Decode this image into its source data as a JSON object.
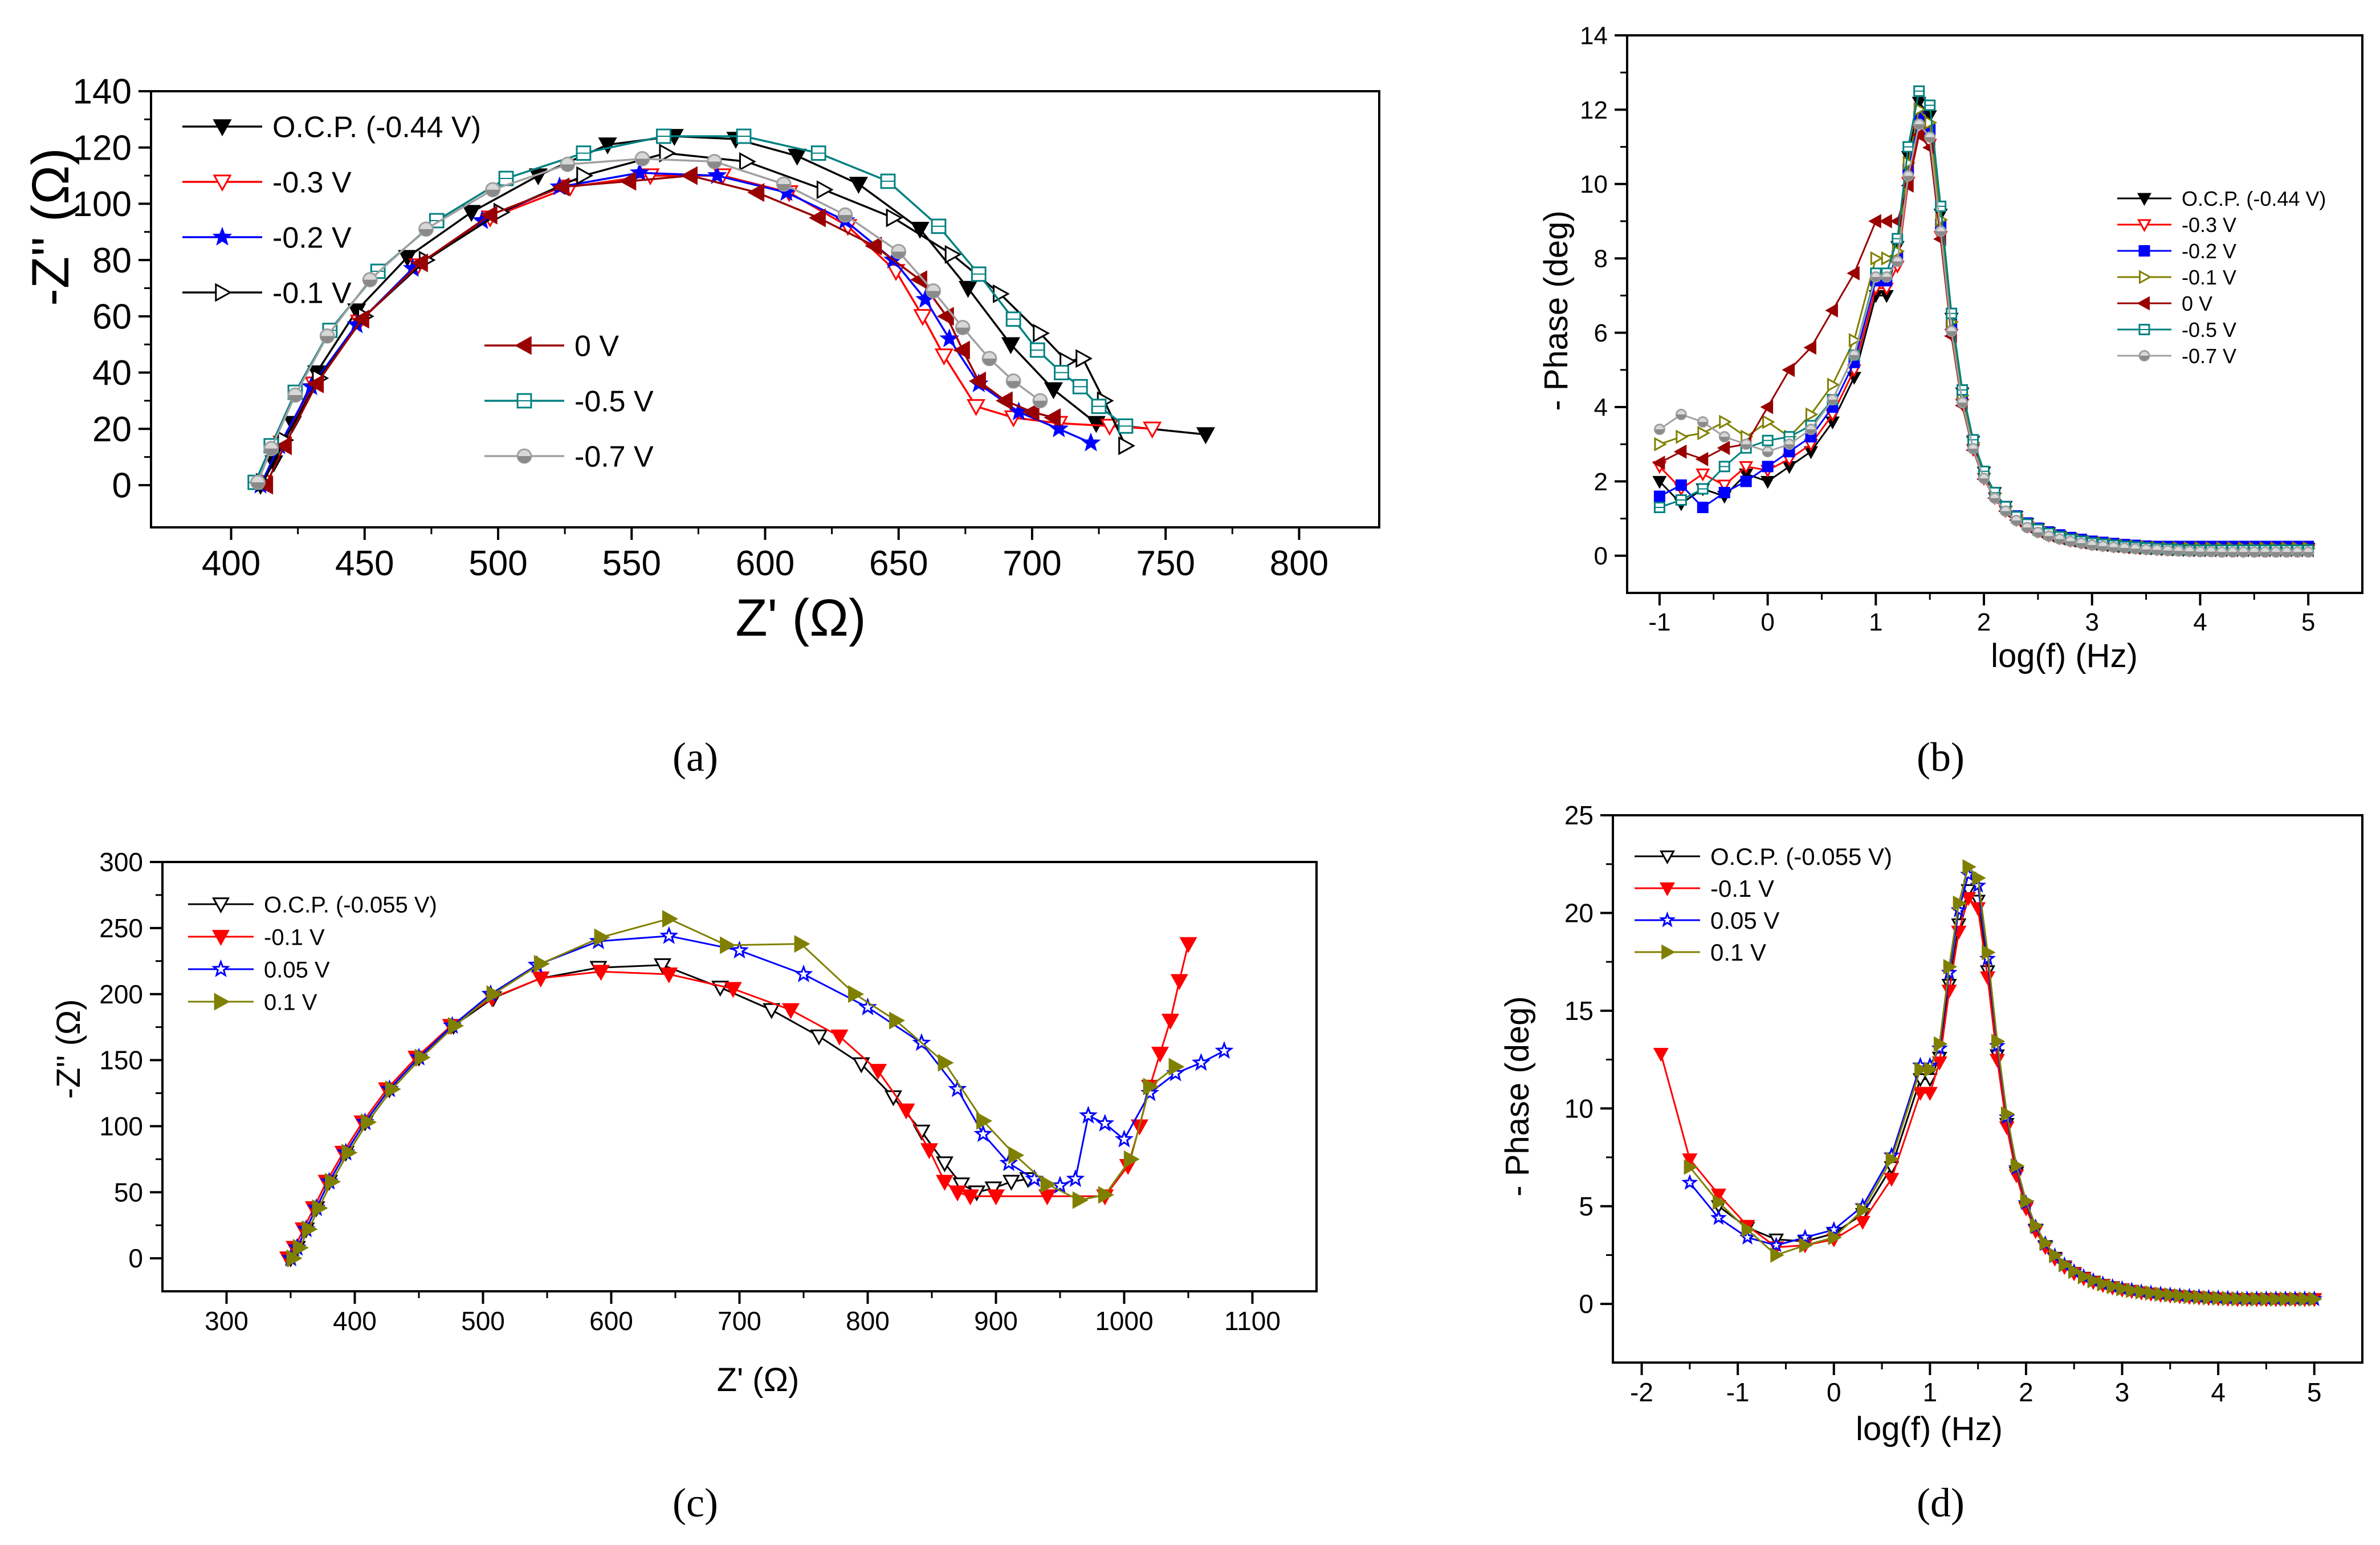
{
  "chart_data": [
    {
      "id": "a",
      "type": "scatter",
      "caption": "(a)",
      "xlabel": "Z' (Ω)",
      "ylabel": "-Z'' (Ω)",
      "xlim": [
        370,
        830
      ],
      "ylim": [
        -15,
        140
      ],
      "xticks": [
        400,
        450,
        500,
        550,
        600,
        650,
        700,
        750,
        800
      ],
      "yticks": [
        0,
        20,
        40,
        60,
        80,
        100,
        120,
        140
      ],
      "series": [
        {
          "name": "O.C.P. (-0.44 V)",
          "color": "#000000",
          "marker": "tri-down-filled",
          "x": [
            411,
            416,
            423,
            432,
            447,
            466,
            490,
            515,
            541,
            566,
            589,
            612,
            635,
            658,
            676,
            692,
            708,
            724,
            765
          ],
          "y": [
            0,
            8,
            22,
            40,
            62,
            81,
            97,
            110,
            121,
            124,
            123,
            117,
            107,
            91,
            70,
            50,
            34,
            22,
            18
          ]
        },
        {
          "name": "-0.3 V",
          "color": "#ff0000",
          "marker": "tri-down-open",
          "x": [
            412,
            419,
            431,
            448,
            470,
            497,
            527,
            557,
            584,
            609,
            631,
            649,
            659,
            667,
            679,
            693,
            710,
            729,
            745
          ],
          "y": [
            1,
            15,
            36,
            58,
            78,
            95,
            106,
            110,
            110,
            104,
            92,
            76,
            60,
            46,
            28,
            24,
            22,
            21,
            20
          ]
        },
        {
          "name": "-0.2 V",
          "color": "#0000ff",
          "marker": "star",
          "x": [
            411,
            418,
            430,
            447,
            468,
            494,
            523,
            553,
            582,
            608,
            630,
            648,
            660,
            669,
            680,
            695,
            710,
            722
          ],
          "y": [
            0,
            14,
            35,
            57,
            77,
            94,
            106,
            111,
            110,
            104,
            94,
            80,
            66,
            52,
            36,
            26,
            20,
            15
          ]
        },
        {
          "name": "-0.1 V",
          "color": "#000000",
          "marker": "tri-right-open",
          "x": [
            412,
            420,
            433,
            450,
            473,
            501,
            532,
            563,
            593,
            622,
            648,
            670,
            688,
            703,
            713,
            719,
            727,
            735
          ],
          "y": [
            1,
            16,
            38,
            60,
            80,
            97,
            110,
            118,
            115,
            105,
            95,
            82,
            68,
            54,
            44,
            45,
            30,
            14
          ]
        },
        {
          "name": "0 V",
          "color": "#990000",
          "marker": "tri-left-filled",
          "x": [
            413,
            420,
            432,
            449,
            471,
            497,
            524,
            549,
            572,
            597,
            620,
            641,
            658,
            668,
            674,
            680,
            690,
            700,
            708
          ],
          "y": [
            0,
            14,
            36,
            59,
            79,
            96,
            106,
            108,
            110,
            104,
            95,
            85,
            73,
            60,
            48,
            37,
            30,
            26,
            24
          ]
        },
        {
          "name": "-0.5 V",
          "color": "#008080",
          "marker": "square-open",
          "x": [
            409,
            415,
            424,
            437,
            455,
            477,
            503,
            532,
            562,
            592,
            620,
            646,
            665,
            680,
            693,
            702,
            711,
            718,
            725,
            735
          ],
          "y": [
            1,
            14,
            33,
            55,
            76,
            94,
            109,
            118,
            124,
            124,
            118,
            108,
            92,
            75,
            59,
            48,
            40,
            35,
            28,
            21
          ]
        },
        {
          "name": "-0.7 V",
          "color": "#a0a0a0",
          "marker": "circle-half",
          "x": [
            410,
            415,
            424,
            436,
            452,
            473,
            498,
            526,
            554,
            581,
            607,
            630,
            650,
            663,
            674,
            684,
            693,
            703
          ],
          "y": [
            1,
            13,
            32,
            53,
            73,
            91,
            105,
            114,
            116,
            115,
            107,
            96,
            83,
            69,
            56,
            45,
            37,
            30
          ]
        }
      ],
      "legend": "top-left"
    },
    {
      "id": "b",
      "type": "scatter",
      "caption": "(b)",
      "xlabel": "log(f) (Hz)",
      "ylabel": "- Phase (deg)",
      "xlim": [
        -1.3,
        5.5
      ],
      "ylim": [
        -1,
        14
      ],
      "xticks": [
        -1,
        0,
        1,
        2,
        3,
        4,
        5
      ],
      "yticks": [
        0,
        2,
        4,
        6,
        8,
        10,
        12,
        14
      ],
      "shape": {
        "peak_x": 1.45,
        "left_w": 0.28,
        "right_w": 0.3,
        "base_x": [
          -1,
          -0.8,
          -0.6,
          -0.4,
          -0.2,
          0,
          0.2,
          0.4,
          0.6,
          0.8,
          1.0
        ]
      },
      "series": [
        {
          "name": "O.C.P. (-0.44 V)",
          "color": "#000000",
          "marker": "tri-down-filled",
          "peak": 12.4,
          "base": [
            2.0,
            1.4,
            1.8,
            1.6,
            2.2,
            2.0,
            2.4,
            2.8,
            3.6,
            4.8,
            7.0
          ],
          "tail": 0.2
        },
        {
          "name": "-0.3 V",
          "color": "#ff0000",
          "marker": "tri-down-open",
          "peak": 11.6,
          "base": [
            2.4,
            1.8,
            2.2,
            1.9,
            2.4,
            2.3,
            2.6,
            3.0,
            3.8,
            5.0,
            7.2
          ],
          "tail": 0.15
        },
        {
          "name": "-0.2 V",
          "color": "#0000ff",
          "marker": "square-filled",
          "peak": 12.0,
          "base": [
            1.6,
            1.9,
            1.3,
            1.7,
            2.0,
            2.4,
            2.8,
            3.2,
            4.0,
            5.2,
            7.4
          ],
          "tail": 0.25
        },
        {
          "name": "-0.1 V",
          "color": "#808000",
          "marker": "tri-right-open",
          "peak": 12.2,
          "base": [
            3.0,
            3.2,
            3.3,
            3.6,
            3.2,
            3.6,
            3.2,
            3.8,
            4.6,
            5.8,
            8.0
          ],
          "tail": 0.2
        },
        {
          "name": "0 V",
          "color": "#990000",
          "marker": "tri-left-filled",
          "peak": 11.5,
          "base": [
            2.5,
            2.8,
            2.6,
            2.9,
            3.0,
            4.0,
            5.0,
            5.6,
            6.6,
            7.6,
            9.0
          ],
          "tail": 0.15
        },
        {
          "name": "-0.5 V",
          "color": "#008080",
          "marker": "square-open",
          "peak": 12.7,
          "base": [
            1.3,
            1.5,
            1.8,
            2.4,
            2.9,
            3.1,
            3.2,
            3.5,
            4.2,
            5.4,
            7.6
          ],
          "tail": 0.15
        },
        {
          "name": "-0.7 V",
          "color": "#a0a0a0",
          "marker": "circle-half",
          "peak": 11.8,
          "base": [
            3.4,
            3.8,
            3.6,
            3.2,
            3.0,
            2.8,
            3.0,
            3.4,
            4.2,
            5.4,
            7.5
          ],
          "tail": 0.1
        }
      ],
      "legend": "right"
    },
    {
      "id": "c",
      "type": "scatter",
      "caption": "(c)",
      "xlabel": "Z' (Ω)",
      "ylabel": "-Z'' (Ω)",
      "xlim": [
        250,
        1150
      ],
      "ylim": [
        -25,
        300
      ],
      "xticks": [
        300,
        400,
        500,
        600,
        700,
        800,
        900,
        1000,
        1100
      ],
      "yticks": [
        0,
        50,
        100,
        150,
        200,
        250,
        300
      ],
      "series": [
        {
          "name": "O.C.P. (-0.055 V)",
          "color": "#000000",
          "marker": "tri-down-open",
          "x": [
            350,
            355,
            362,
            370,
            380,
            393,
            408,
            427,
            450,
            477,
            508,
            545,
            590,
            640,
            685,
            725,
            762,
            795,
            820,
            842,
            860,
            873,
            885,
            898,
            912,
            925
          ],
          "y": [
            0,
            8,
            22,
            38,
            58,
            80,
            103,
            128,
            152,
            176,
            197,
            212,
            220,
            222,
            205,
            188,
            168,
            147,
            122,
            96,
            72,
            56,
            50,
            53,
            58,
            60
          ]
        },
        {
          "name": "-0.1 V",
          "color": "#ff0000",
          "marker": "tri-down-filled",
          "x": [
            348,
            353,
            360,
            368,
            378,
            391,
            406,
            425,
            448,
            475,
            507,
            545,
            592,
            645,
            695,
            740,
            778,
            808,
            830,
            848,
            860,
            870,
            880,
            900,
            940,
            985,
            1003,
            1012,
            1020,
            1028,
            1036,
            1043,
            1050
          ],
          "y": [
            0,
            8,
            22,
            38,
            58,
            80,
            103,
            128,
            152,
            176,
            197,
            212,
            217,
            215,
            204,
            188,
            168,
            142,
            112,
            82,
            58,
            50,
            47,
            47,
            47,
            47,
            70,
            100,
            130,
            155,
            180,
            210,
            238
          ]
        },
        {
          "name": "0.05 V",
          "color": "#0000ff",
          "marker": "star",
          "x": [
            350,
            355,
            362,
            370,
            380,
            393,
            408,
            427,
            450,
            476,
            506,
            542,
            590,
            645,
            700,
            750,
            800,
            842,
            870,
            890,
            910,
            930,
            950,
            962,
            972,
            985,
            1000,
            1020,
            1040,
            1060,
            1078
          ],
          "y": [
            0,
            8,
            22,
            38,
            58,
            80,
            103,
            128,
            152,
            176,
            200,
            222,
            240,
            244,
            233,
            215,
            190,
            163,
            128,
            94,
            72,
            60,
            55,
            60,
            108,
            102,
            90,
            125,
            140,
            148,
            157
          ]
        },
        {
          "name": "0.1 V",
          "color": "#808000",
          "marker": "tri-right-filled",
          "x": [
            352,
            357,
            364,
            372,
            382,
            395,
            410,
            429,
            452,
            478,
            508,
            545,
            592,
            645,
            690,
            748,
            790,
            822,
            860,
            890,
            915,
            940,
            965,
            985,
            1005,
            1020,
            1040
          ],
          "y": [
            0,
            8,
            22,
            38,
            58,
            80,
            103,
            128,
            152,
            176,
            200,
            223,
            243,
            257,
            237,
            238,
            200,
            180,
            148,
            104,
            78,
            56,
            44,
            48,
            75,
            130,
            145
          ]
        }
      ],
      "legend": "top-left"
    },
    {
      "id": "d",
      "type": "scatter",
      "caption": "(d)",
      "xlabel": "log(f) (Hz)",
      "ylabel": "- Phase (deg)",
      "xlim": [
        -2.3,
        5.5
      ],
      "ylim": [
        -3,
        25
      ],
      "xticks": [
        -2,
        -1,
        0,
        1,
        2,
        3,
        4,
        5
      ],
      "yticks": [
        0,
        5,
        10,
        15,
        20,
        25
      ],
      "shape": {
        "peak_x": 1.45,
        "left_w": 0.34,
        "right_w": 0.36,
        "base_x": [
          -1.8,
          -1.5,
          -1.2,
          -0.9,
          -0.6,
          -0.3,
          0.0,
          0.3,
          0.6,
          0.9
        ]
      },
      "series": [
        {
          "name": "O.C.P. (-0.055 V)",
          "color": "#000000",
          "marker": "tri-down-open",
          "peak": 21.4,
          "start": -1.4,
          "base": [
            null,
            6.6,
            5.0,
            3.9,
            3.3,
            3.2,
            3.6,
            4.6,
            7.0,
            11.5
          ],
          "tail": 0.25
        },
        {
          "name": "-0.1 V",
          "color": "#ff0000",
          "marker": "tri-down-filled",
          "peak": 21.0,
          "start": -1.8,
          "base": [
            12.8,
            7.4,
            5.6,
            4.0,
            2.9,
            3.0,
            3.3,
            4.2,
            6.4,
            10.8
          ],
          "tail": 0.25
        },
        {
          "name": "0.05 V",
          "color": "#0000ff",
          "marker": "star",
          "peak": 22.2,
          "start": -1.7,
          "base": [
            8.2,
            6.2,
            4.4,
            3.4,
            3.0,
            3.4,
            3.8,
            5.0,
            7.6,
            12.2
          ],
          "tail": 0.25
        },
        {
          "name": "0.1 V",
          "color": "#808000",
          "marker": "tri-right-filled",
          "peak": 22.6,
          "start": -1.5,
          "base": [
            null,
            7.0,
            5.2,
            3.8,
            2.5,
            3.0,
            3.4,
            4.8,
            7.4,
            12.0
          ],
          "tail": 0.25
        }
      ],
      "legend": "top-left"
    }
  ]
}
